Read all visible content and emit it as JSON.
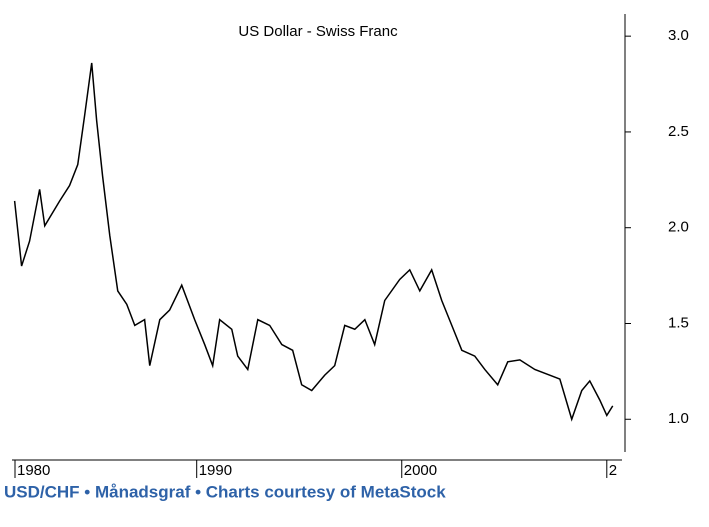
{
  "chart_data": {
    "type": "line",
    "title": "US Dollar - Swiss Franc",
    "caption": "USD/CHF • Månadsgraf • Charts courtesy of MetaStock",
    "x": [
      1981.12,
      1981.46,
      1981.85,
      1982.34,
      1982.59,
      1983.32,
      1983.8,
      1984.2,
      1984.54,
      1984.88,
      1985.12,
      1985.41,
      1985.76,
      1986.15,
      1986.59,
      1986.98,
      1987.46,
      1987.71,
      1988.2,
      1988.68,
      1989.27,
      1989.9,
      1990.39,
      1990.78,
      1991.12,
      1991.71,
      1992.0,
      1992.49,
      1992.98,
      1993.56,
      1994.15,
      1994.68,
      1995.12,
      1995.61,
      1996.24,
      1996.73,
      1997.22,
      1997.71,
      1998.2,
      1998.68,
      1999.17,
      1999.9,
      2000.39,
      2000.88,
      2001.46,
      2001.95,
      2002.44,
      2002.93,
      2003.56,
      2004.05,
      2004.68,
      2005.17,
      2005.76,
      2006.49,
      2007.22,
      2007.71,
      2008.29,
      2008.78,
      2009.17,
      2009.66,
      2010.0,
      2010.29
    ],
    "series": [
      {
        "name": "USD/CHF",
        "color": "#000000",
        "values": [
          2.14,
          1.8,
          1.93,
          2.2,
          2.01,
          2.14,
          2.22,
          2.33,
          2.59,
          2.86,
          2.56,
          2.27,
          1.96,
          1.67,
          1.6,
          1.49,
          1.52,
          1.28,
          1.52,
          1.57,
          1.7,
          1.52,
          1.39,
          1.28,
          1.52,
          1.47,
          1.33,
          1.26,
          1.52,
          1.49,
          1.39,
          1.36,
          1.18,
          1.15,
          1.23,
          1.28,
          1.49,
          1.47,
          1.52,
          1.39,
          1.62,
          1.73,
          1.78,
          1.67,
          1.78,
          1.62,
          1.49,
          1.36,
          1.33,
          1.26,
          1.18,
          1.3,
          1.31,
          1.26,
          1.23,
          1.21,
          1.0,
          1.15,
          1.2,
          1.1,
          1.02,
          1.07
        ]
      }
    ],
    "xlim": [
      1980.7,
      2010.4
    ],
    "xticks": [
      1980,
      1990,
      2000,
      {
        "value": 2010,
        "label": "2"
      }
    ],
    "ylim": [
      0.85,
      3.1
    ],
    "yticks": [
      {
        "value": 3,
        "label": "3.0"
      },
      2.5,
      {
        "value": 2,
        "label": "2.0"
      },
      1.5,
      {
        "value": 1,
        "label": "1.0"
      }
    ]
  }
}
